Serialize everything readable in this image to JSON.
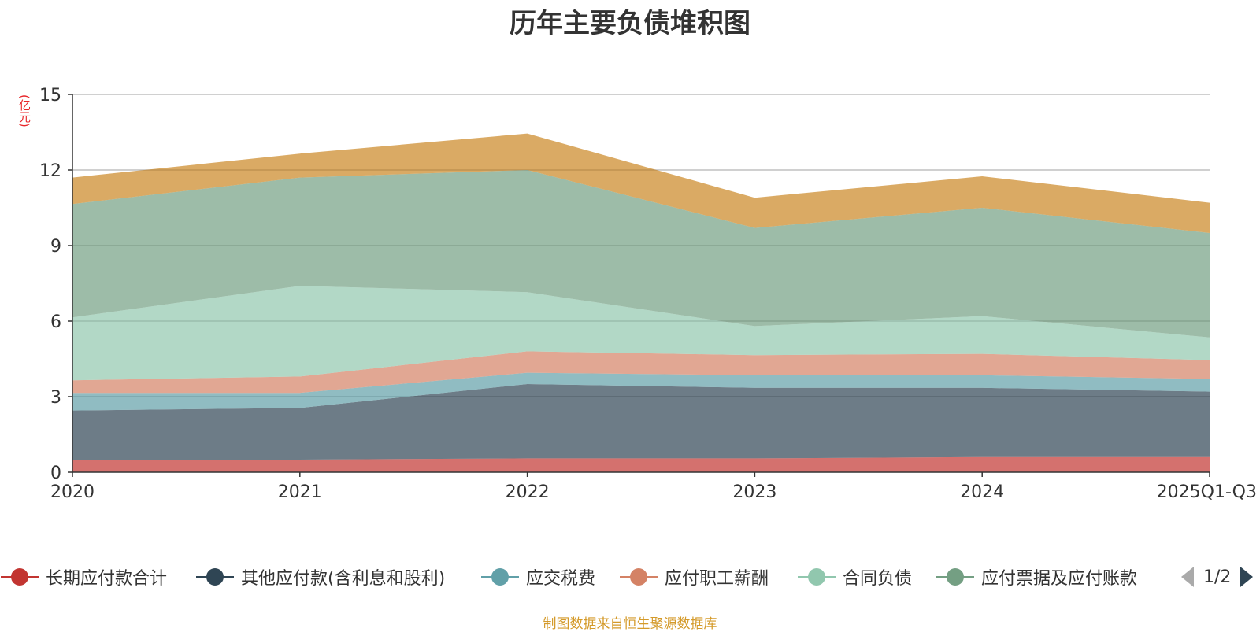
{
  "chart_data": {
    "type": "area",
    "stacked": true,
    "title": "历年主要负债堆积图",
    "ylabel": "(亿元)",
    "xlabel": "",
    "ylim": [
      0,
      15
    ],
    "yticks": [
      0,
      3,
      6,
      9,
      12,
      15
    ],
    "categories": [
      "2020",
      "2021",
      "2022",
      "2023",
      "2024",
      "2025Q1-Q3"
    ],
    "series": [
      {
        "name": "长期应付款合计",
        "color": "#c23531",
        "values": [
          0.5,
          0.5,
          0.55,
          0.55,
          0.6,
          0.6
        ]
      },
      {
        "name": "其他应付款(含利息和股利)",
        "color": "#2f4554",
        "values": [
          1.95,
          2.05,
          2.95,
          2.8,
          2.75,
          2.6
        ]
      },
      {
        "name": "应交税费",
        "color": "#61a0a8",
        "values": [
          0.7,
          0.6,
          0.45,
          0.5,
          0.5,
          0.5
        ]
      },
      {
        "name": "应付职工薪酬",
        "color": "#d48265",
        "values": [
          0.5,
          0.65,
          0.85,
          0.8,
          0.85,
          0.75
        ]
      },
      {
        "name": "合同负债",
        "color": "#91c7ae",
        "values": [
          2.5,
          3.6,
          2.35,
          1.15,
          1.5,
          0.9
        ]
      },
      {
        "name": "应付票据及应付账款",
        "color": "#749f83",
        "values": [
          4.5,
          4.3,
          4.85,
          3.9,
          4.3,
          4.15
        ]
      },
      {
        "name": "",
        "color": "#ca8622",
        "values": [
          1.05,
          0.95,
          1.45,
          1.2,
          1.25,
          1.2
        ]
      }
    ],
    "legend": {
      "position": "bottom",
      "page": "1/2"
    },
    "grid": true
  },
  "source_note": "制图数据来自恒生聚源数据库"
}
